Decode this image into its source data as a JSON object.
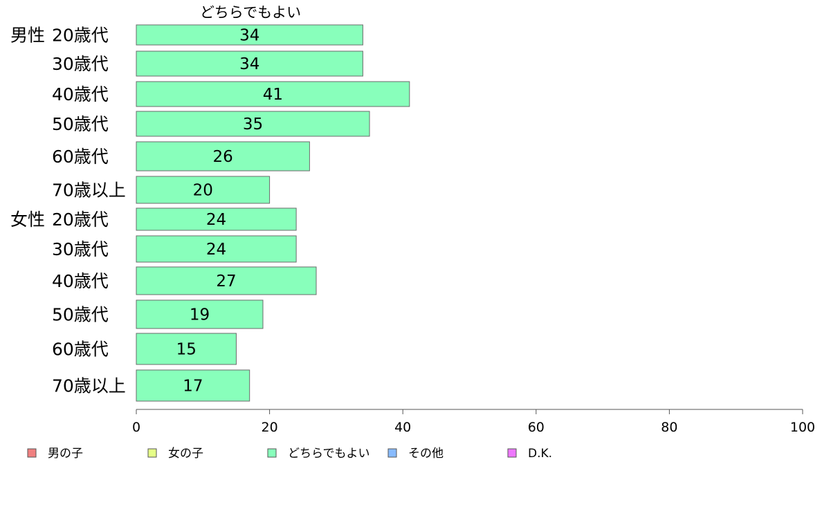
{
  "chart_data": {
    "type": "bar",
    "orientation": "horizontal",
    "series_title": "どちらでもよい",
    "rows": [
      {
        "group": "男性",
        "category": "20歳代",
        "value": 34
      },
      {
        "group": "",
        "category": "30歳代",
        "value": 34
      },
      {
        "group": "",
        "category": "40歳代",
        "value": 41
      },
      {
        "group": "",
        "category": "50歳代",
        "value": 35
      },
      {
        "group": "",
        "category": "60歳代",
        "value": 26
      },
      {
        "group": "",
        "category": "70歳以上",
        "value": 20
      },
      {
        "group": "女性",
        "category": "20歳代",
        "value": 24
      },
      {
        "group": "",
        "category": "30歳代",
        "value": 24
      },
      {
        "group": "",
        "category": "40歳代",
        "value": 27
      },
      {
        "group": "",
        "category": "50歳代",
        "value": 19
      },
      {
        "group": "",
        "category": "60歳代",
        "value": 15
      },
      {
        "group": "",
        "category": "70歳以上",
        "value": 17
      }
    ],
    "xlim": [
      0,
      100
    ],
    "xticks": [
      "0",
      "20",
      "40",
      "60",
      "80",
      "100"
    ],
    "bar_color": "#88FFBB",
    "bar_stroke": "#6a6a6a",
    "grid": false,
    "legend_position": "bottom",
    "legend": [
      {
        "label": "男の子",
        "color": "#F08080"
      },
      {
        "label": "女の子",
        "color": "#E6FF88"
      },
      {
        "label": "どちらでもよい",
        "color": "#88FFBB"
      },
      {
        "label": "その他",
        "color": "#88BBFF"
      },
      {
        "label": "D.K.",
        "color": "#EE77FF"
      }
    ]
  }
}
